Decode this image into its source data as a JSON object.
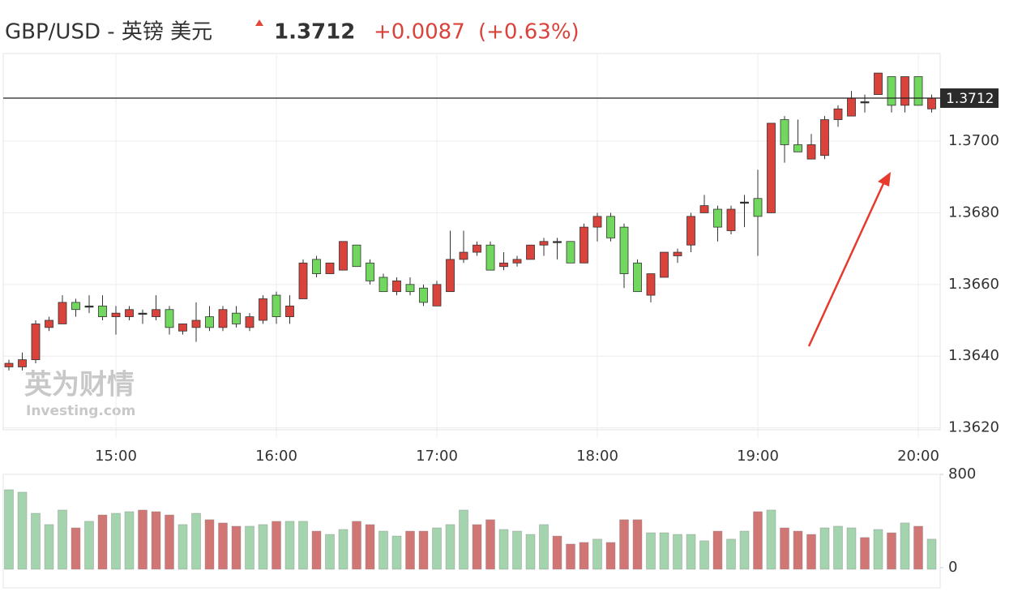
{
  "chart_data": [
    {
      "type": "candlestick",
      "title": "GBP/USD - 英镑 美元",
      "last_price": 1.3712,
      "change": "+0.0087",
      "change_pct": "(+0.63%)",
      "watermark": "英为财情",
      "watermark_sub": "Investing.com",
      "up_color": "#d9433b",
      "down_color": "#72d75f",
      "categories": [
        null,
        null,
        null,
        null,
        null,
        null,
        null,
        null,
        "15:00",
        null,
        null,
        null,
        null,
        null,
        null,
        null,
        null,
        null,
        null,
        null,
        "16:00",
        null,
        null,
        null,
        null,
        null,
        null,
        null,
        null,
        null,
        null,
        null,
        "17:00",
        null,
        null,
        null,
        null,
        null,
        null,
        null,
        null,
        null,
        null,
        null,
        "18:00",
        null,
        null,
        null,
        null,
        null,
        null,
        null,
        null,
        null,
        null,
        null,
        "19:00",
        null,
        null,
        null,
        null,
        null,
        null,
        null,
        null,
        null,
        null,
        null,
        "20:00",
        null
      ],
      "open": [
        1.3637,
        1.3637,
        1.3639,
        1.3648,
        1.3649,
        1.3655,
        1.3654,
        1.3654,
        1.3651,
        1.3651,
        1.3652,
        1.3651,
        1.3653,
        1.3647,
        1.3648,
        1.3651,
        1.3648,
        1.3652,
        1.3648,
        1.365,
        1.3657,
        1.3651,
        1.3656,
        1.3667,
        1.3663,
        1.3664,
        1.3671,
        1.3666,
        1.3662,
        1.3658,
        1.366,
        1.3659,
        1.3654,
        1.3658,
        1.3667,
        1.3669,
        1.3671,
        1.3665,
        1.3666,
        1.3667,
        1.3671,
        1.3672,
        1.3672,
        1.3666,
        1.3676,
        1.3679,
        1.3676,
        1.3666,
        1.3657,
        1.3662,
        1.3668,
        1.3671,
        1.368,
        1.3681,
        1.3675,
        1.3683,
        1.3684,
        1.368,
        1.3706,
        1.3699,
        1.3695,
        1.3696,
        1.3706,
        1.3707,
        1.3711,
        1.3713,
        1.3718,
        1.371,
        1.3718,
        1.3709
      ],
      "high": [
        1.3639,
        1.3641,
        1.365,
        1.3651,
        1.3657,
        1.3656,
        1.3657,
        1.3657,
        1.3654,
        1.3654,
        1.3653,
        1.3657,
        1.3654,
        1.3649,
        1.3655,
        1.3654,
        1.3654,
        1.3654,
        1.3652,
        1.3657,
        1.3658,
        1.3657,
        1.3667,
        1.3668,
        1.3666,
        1.3672,
        1.3671,
        1.3667,
        1.3663,
        1.3662,
        1.3662,
        1.366,
        1.3661,
        1.3675,
        1.3675,
        1.3672,
        1.3672,
        1.3669,
        1.3668,
        1.3671,
        1.3673,
        1.3673,
        1.3672,
        1.3677,
        1.368,
        1.368,
        1.3677,
        1.3667,
        1.3663,
        1.3669,
        1.367,
        1.368,
        1.3685,
        1.3682,
        1.3682,
        1.3685,
        1.3692,
        1.3705,
        1.3707,
        1.3706,
        1.3702,
        1.3707,
        1.371,
        1.3714,
        1.3713,
        1.3719,
        1.3718,
        1.3718,
        1.3718,
        1.3713
      ],
      "low": [
        1.3636,
        1.3636,
        1.3638,
        1.3647,
        1.3649,
        1.3651,
        1.3652,
        1.365,
        1.3646,
        1.365,
        1.3649,
        1.365,
        1.3646,
        1.3646,
        1.3644,
        1.3647,
        1.3647,
        1.3648,
        1.3647,
        1.3649,
        1.3649,
        1.3649,
        1.3656,
        1.3662,
        1.3663,
        1.3664,
        1.3665,
        1.366,
        1.3658,
        1.3657,
        1.3657,
        1.3654,
        1.3654,
        1.3658,
        1.3666,
        1.3668,
        1.3664,
        1.3664,
        1.3665,
        1.3667,
        1.3668,
        1.3667,
        1.3666,
        1.3666,
        1.3672,
        1.3672,
        1.3659,
        1.3658,
        1.3655,
        1.3662,
        1.3666,
        1.3669,
        1.368,
        1.3672,
        1.3674,
        1.3676,
        1.3668,
        1.368,
        1.3694,
        1.3697,
        1.3695,
        1.3695,
        1.3704,
        1.3707,
        1.3708,
        1.3713,
        1.3708,
        1.3708,
        1.371,
        1.3708
      ],
      "close": [
        1.3638,
        1.3639,
        1.3649,
        1.365,
        1.3655,
        1.3653,
        1.3654,
        1.3651,
        1.3652,
        1.3653,
        1.3652,
        1.3653,
        1.3648,
        1.3649,
        1.365,
        1.3648,
        1.3653,
        1.3649,
        1.3651,
        1.3656,
        1.3651,
        1.3654,
        1.3666,
        1.3663,
        1.3666,
        1.3672,
        1.3665,
        1.3661,
        1.3658,
        1.3661,
        1.3658,
        1.3655,
        1.366,
        1.3667,
        1.3669,
        1.3671,
        1.3664,
        1.3666,
        1.3667,
        1.3671,
        1.3672,
        1.3672,
        1.3666,
        1.3676,
        1.3679,
        1.3673,
        1.3663,
        1.3658,
        1.3663,
        1.3669,
        1.3669,
        1.3679,
        1.3682,
        1.3676,
        1.3681,
        1.3683,
        1.3679,
        1.3705,
        1.3699,
        1.3697,
        1.3699,
        1.3706,
        1.3709,
        1.3712,
        1.3711,
        1.3719,
        1.371,
        1.3718,
        1.371,
        1.3712
      ],
      "ylim": [
        1.3619,
        1.3724
      ],
      "yticks": [
        {
          "value": 1.362,
          "label": "1.3620"
        },
        {
          "value": 1.364,
          "label": "1.3640"
        },
        {
          "value": 1.366,
          "label": "1.3660"
        },
        {
          "value": 1.368,
          "label": "1.3680"
        },
        {
          "value": 1.37,
          "label": "1.3700"
        }
      ],
      "grid": true
    },
    {
      "type": "bar",
      "values": [
        668,
        647,
        466,
        369,
        494,
        341,
        397,
        452,
        466,
        480,
        494,
        480,
        452,
        369,
        466,
        411,
        383,
        355,
        355,
        369,
        397,
        397,
        397,
        313,
        285,
        327,
        397,
        369,
        313,
        271,
        313,
        313,
        341,
        369,
        494,
        369,
        411,
        327,
        313,
        285,
        369,
        271,
        202,
        216,
        244,
        216,
        411,
        411,
        299,
        299,
        285,
        285,
        230,
        313,
        244,
        313,
        480,
        494,
        341,
        313,
        285,
        341,
        355,
        341,
        258,
        327,
        299,
        383,
        355,
        244
      ],
      "colors": [
        "#a3d4ad",
        "#a3d4ad",
        "#a3d4ad",
        "#a3d4ad",
        "#a3d4ad",
        "#d07674",
        "#a3d4ad",
        "#d07674",
        "#a3d4ad",
        "#a3d4ad",
        "#d07674",
        "#d07674",
        "#d07674",
        "#a3d4ad",
        "#a3d4ad",
        "#d07674",
        "#d07674",
        "#d07674",
        "#a3d4ad",
        "#a3d4ad",
        "#d07674",
        "#a3d4ad",
        "#a3d4ad",
        "#d07674",
        "#a3d4ad",
        "#a3d4ad",
        "#d07674",
        "#d07674",
        "#a3d4ad",
        "#a3d4ad",
        "#d07674",
        "#d07674",
        "#a3d4ad",
        "#a3d4ad",
        "#a3d4ad",
        "#d07674",
        "#d07674",
        "#a3d4ad",
        "#a3d4ad",
        "#a3d4ad",
        "#a3d4ad",
        "#d07674",
        "#d07674",
        "#d07674",
        "#a3d4ad",
        "#d07674",
        "#d07674",
        "#d07674",
        "#a3d4ad",
        "#a3d4ad",
        "#a3d4ad",
        "#a3d4ad",
        "#a3d4ad",
        "#d07674",
        "#a3d4ad",
        "#a3d4ad",
        "#d07674",
        "#a3d4ad",
        "#d07674",
        "#d07674",
        "#d07674",
        "#a3d4ad",
        "#a3d4ad",
        "#a3d4ad",
        "#d07674",
        "#a3d4ad",
        "#d07674",
        "#a3d4ad",
        "#d07674",
        "#a3d4ad"
      ],
      "ylim": [
        0,
        800
      ],
      "yticks": [
        0,
        800
      ]
    }
  ]
}
